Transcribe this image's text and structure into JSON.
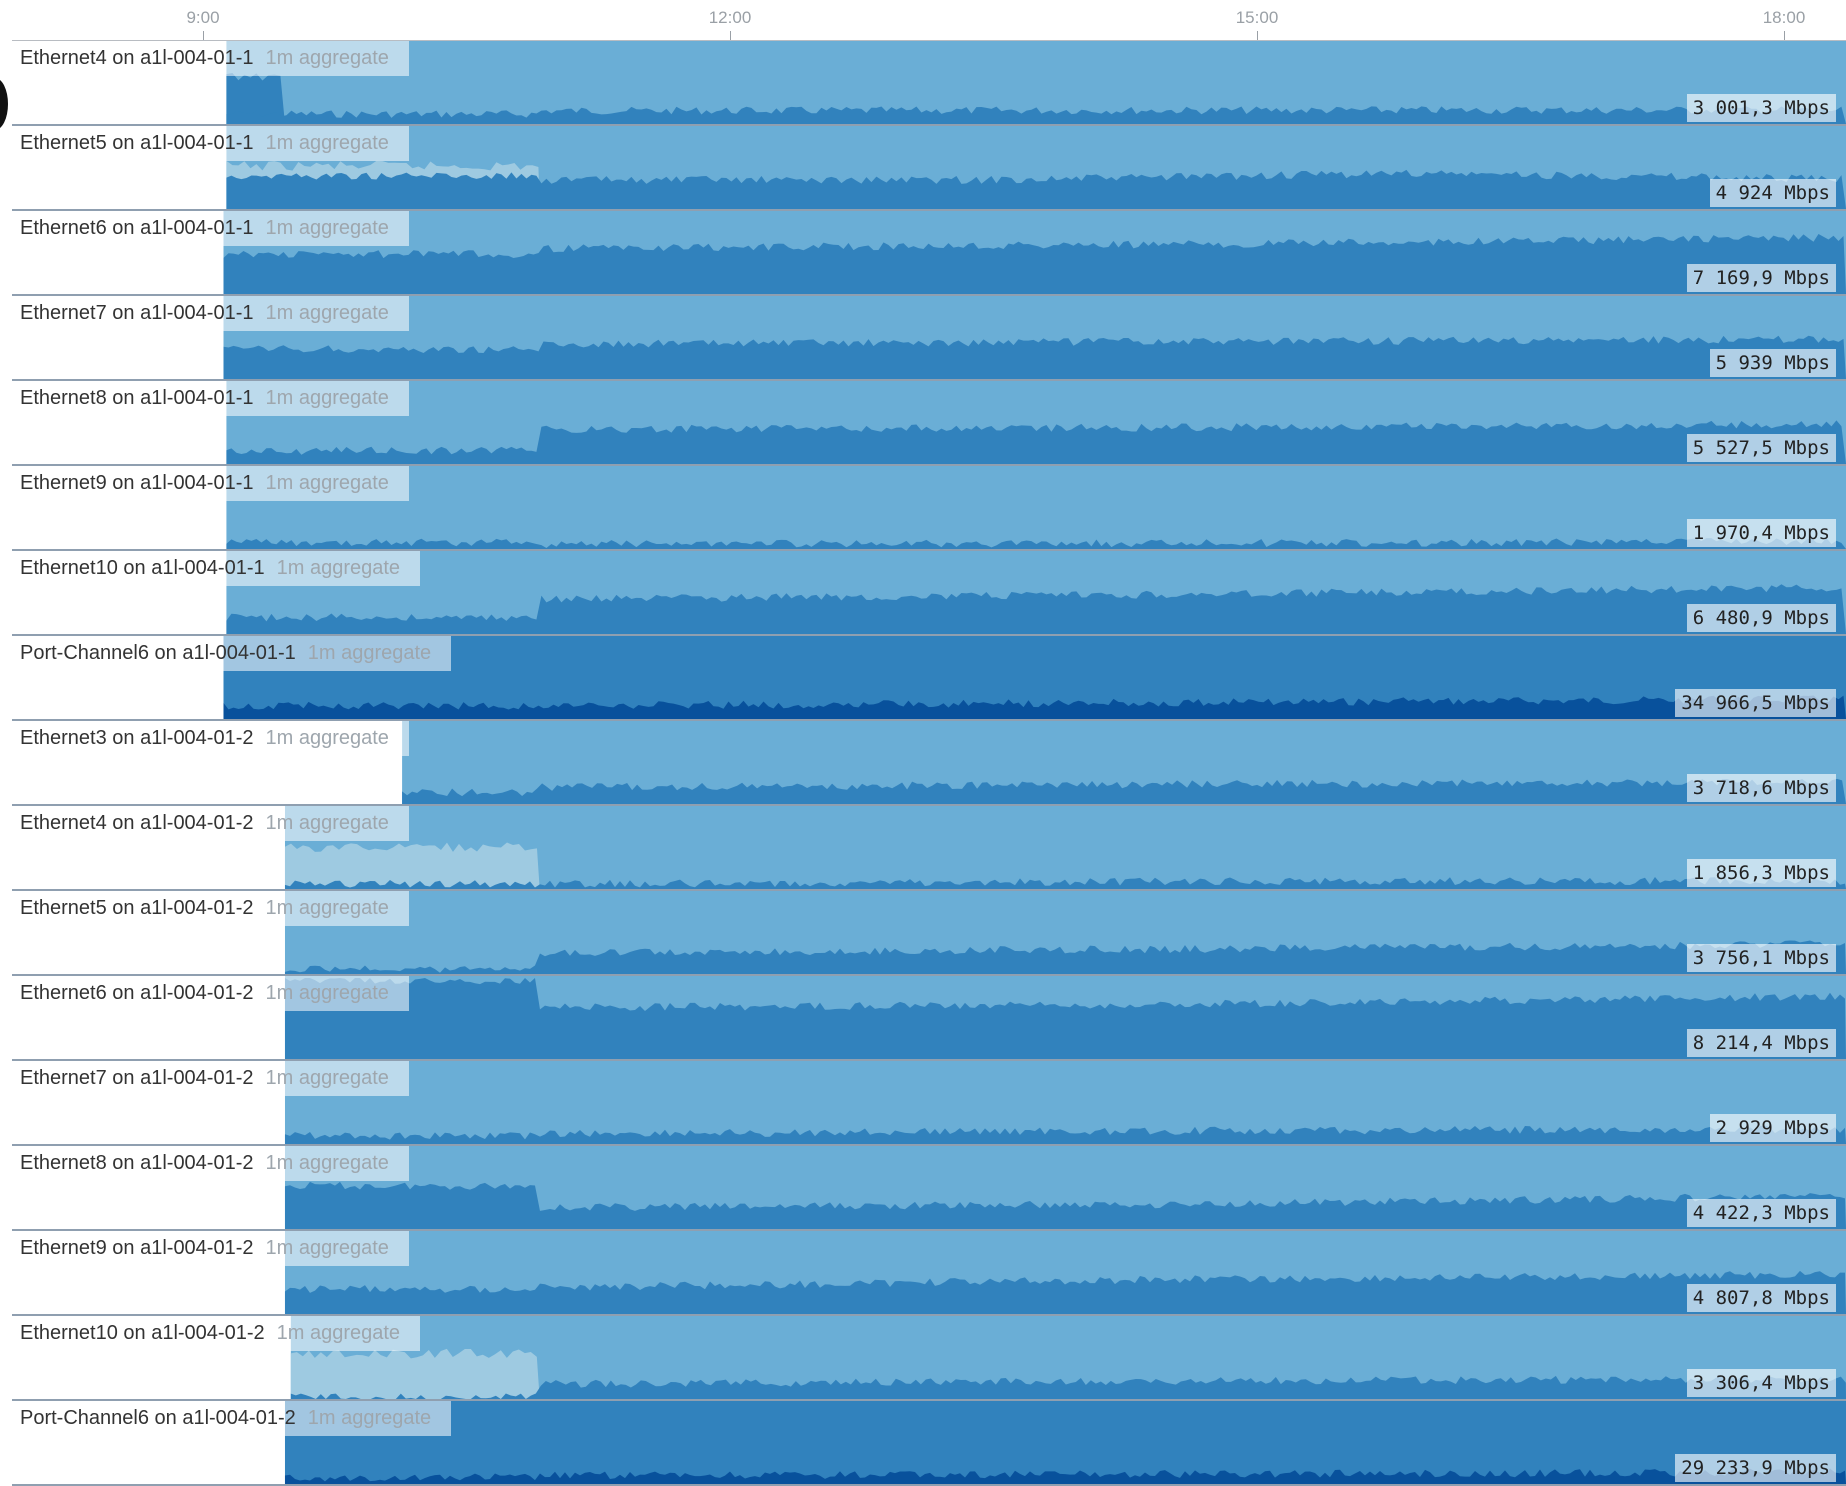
{
  "axis": {
    "ticks": [
      "9:00",
      "12:00",
      "15:00",
      "18:00"
    ]
  },
  "colors": {
    "band_light": "#6aaed6",
    "band_mid": "#3182bd",
    "band_dark": "#08519c",
    "highlight": "#9ecae1"
  },
  "aggregate_label": "1m aggregate",
  "chart_data": {
    "type": "area",
    "x_range": [
      "8:55",
      "18:10"
    ],
    "series": [
      {
        "name": "Ethernet4 on a1l-004-01-1",
        "current": "3 001,3 Mbps",
        "start": "9:08",
        "total_level": 1.05,
        "band_levels": [
          0.12,
          0.16,
          0.17
        ],
        "early_level": 0.58,
        "early_end": "9:28",
        "step_time": "10:55"
      },
      {
        "name": "Ethernet5 on a1l-004-01-1",
        "current": "4 924 Mbps",
        "start": "9:08",
        "total_level": 1.38,
        "band_levels": [
          0.4,
          0.35,
          0.35,
          0.43,
          0.36
        ],
        "early_level": 0.52,
        "early_end": "10:55",
        "step_time": "10:55"
      },
      {
        "name": "Ethernet6 on a1l-004-01-1",
        "current": "7 169,9 Mbps",
        "start": "9:07",
        "total_level": 1.48,
        "band_levels": [
          0.48,
          0.55,
          0.6,
          0.68
        ],
        "step_time": "10:55"
      },
      {
        "name": "Ethernet7 on a1l-004-01-1",
        "current": "5 939 Mbps",
        "start": "9:07",
        "total_level": 1.32,
        "band_levels": [
          0.36,
          0.42,
          0.45,
          0.48
        ],
        "step_time": "10:55"
      },
      {
        "name": "Ethernet8 on a1l-004-01-1",
        "current": "5 527,5 Mbps",
        "start": "9:08",
        "total_level": 1.28,
        "band_levels": [
          0.16,
          0.42,
          0.44,
          0.48
        ],
        "step_time": "10:55"
      },
      {
        "name": "Ethernet9 on a1l-004-01-1",
        "current": "1 970,4 Mbps",
        "start": "9:08",
        "total_level": 1.05,
        "band_levels": [
          0.08,
          0.06,
          0.07,
          0.09
        ],
        "step_time": "10:55"
      },
      {
        "name": "Ethernet10 on a1l-004-01-1",
        "current": "6 480,9 Mbps",
        "start": "9:08",
        "total_level": 1.32,
        "band_levels": [
          0.2,
          0.42,
          0.48,
          0.56
        ],
        "step_time": "10:55"
      },
      {
        "name": "Port-Channel6 on a1l-004-01-1",
        "current": "34 966,5 Mbps",
        "start": "9:07",
        "total_level": 1.15,
        "band_levels": [
          0.16,
          0.16,
          0.2,
          0.24
        ],
        "dark": true,
        "step_time": "10:55"
      },
      {
        "name": "Ethernet3 on a1l-004-01-2",
        "current": "3 718,6 Mbps",
        "start": "10:08",
        "total_level": 1.02,
        "band_levels": [
          0.14,
          0.2,
          0.24,
          0.26
        ],
        "step_time": "10:55"
      },
      {
        "name": "Ethernet4 on a1l-004-01-2",
        "current": "1 856,3 Mbps",
        "start": "9:28",
        "total_level": 1.05,
        "band_levels": [
          0.06,
          0.06,
          0.09,
          0.1
        ],
        "early_level": 0.5,
        "early_end": "10:55",
        "step_time": "10:55"
      },
      {
        "name": "Ethernet5 on a1l-004-01-2",
        "current": "3 756,1 Mbps",
        "start": "9:28",
        "total_level": 1.02,
        "band_levels": [
          0.06,
          0.26,
          0.3,
          0.36
        ],
        "step_time": "10:55"
      },
      {
        "name": "Ethernet6 on a1l-004-01-2",
        "current": "8 214,4 Mbps",
        "start": "9:28",
        "total_level": 1.45,
        "band_levels": [
          0.95,
          0.62,
          0.66,
          0.76
        ],
        "step_time": "10:55"
      },
      {
        "name": "Ethernet7 on a1l-004-01-2",
        "current": "2 929 Mbps",
        "start": "9:28",
        "total_level": 1.02,
        "band_levels": [
          0.1,
          0.12,
          0.16,
          0.18
        ],
        "step_time": "10:55"
      },
      {
        "name": "Ethernet8 on a1l-004-01-2",
        "current": "4 422,3 Mbps",
        "start": "9:28",
        "total_level": 1.02,
        "band_levels": [
          0.52,
          0.26,
          0.3,
          0.4
        ],
        "step_time": "10:55"
      },
      {
        "name": "Ethernet9 on a1l-004-01-2",
        "current": "4 807,8 Mbps",
        "start": "9:28",
        "total_level": 1.02,
        "band_levels": [
          0.3,
          0.32,
          0.42,
          0.48
        ],
        "step_time": "10:55"
      },
      {
        "name": "Ethernet10 on a1l-004-01-2",
        "current": "3 306,4 Mbps",
        "start": "9:30",
        "total_level": 1.02,
        "band_levels": [
          0.02,
          0.18,
          0.22,
          0.24
        ],
        "early_level": 0.55,
        "early_end": "10:55",
        "step_time": "10:55"
      },
      {
        "name": "Port-Channel6 on a1l-004-01-2",
        "current": "29 233,9 Mbps",
        "start": "9:28",
        "total_level": 1.15,
        "band_levels": [
          0.08,
          0.1,
          0.12,
          0.14
        ],
        "dark": true,
        "step_time": "10:55"
      }
    ]
  }
}
